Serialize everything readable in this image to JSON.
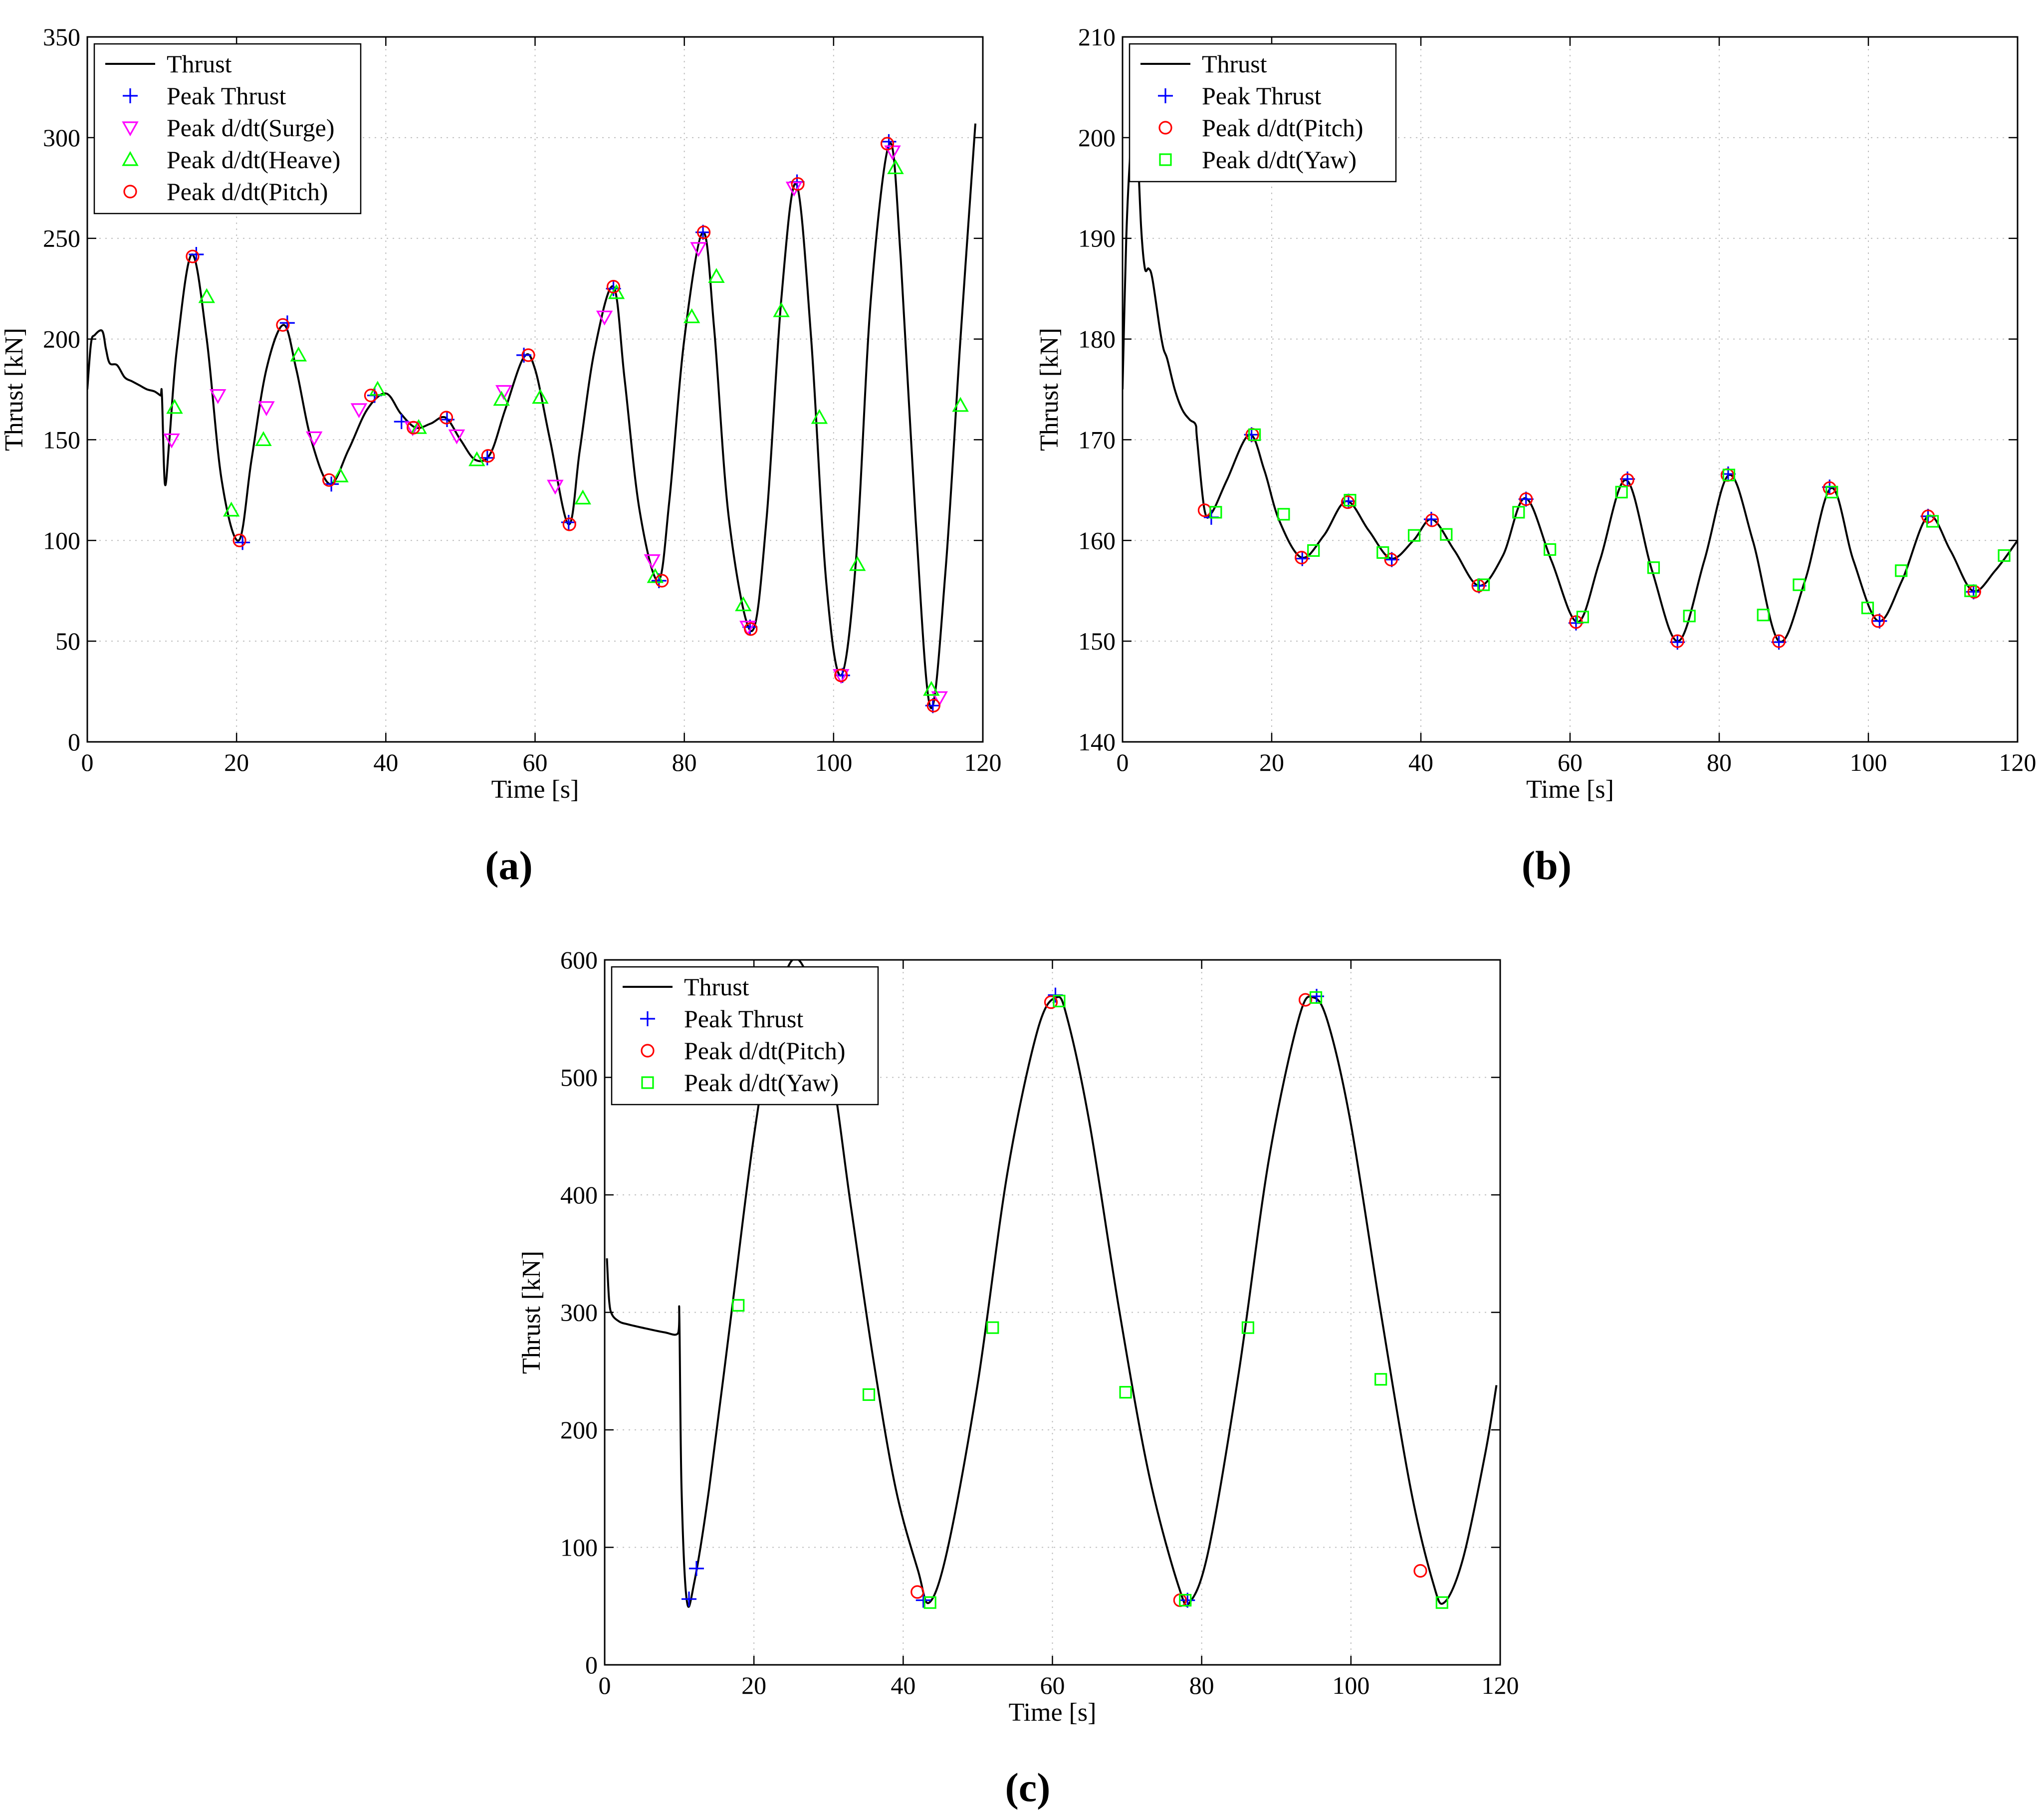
{
  "colors": {
    "thrust": "#000000",
    "peak_thrust": "#0000ff",
    "peak_surge": "#ff00ff",
    "peak_heave": "#00ff00",
    "peak_pitch": "#ff0000",
    "peak_yaw": "#00ff00",
    "grid": "#bfbfbf"
  },
  "chart_data": [
    {
      "panel_label": "(a)",
      "type": "line",
      "xlabel": "Time [s]",
      "ylabel": "Thrust [kN]",
      "xlim": [
        0,
        120
      ],
      "ylim": [
        0,
        350
      ],
      "xticks": [
        0,
        20,
        40,
        60,
        80,
        100,
        120
      ],
      "yticks": [
        0,
        50,
        100,
        150,
        200,
        250,
        300,
        350
      ],
      "grid": true,
      "legend_position": "top-left",
      "series": [
        {
          "name": "Thrust",
          "kind": "line",
          "color": "#000000",
          "x": [
            0,
            0.5,
            1,
            2,
            2.5,
            3,
            4,
            5,
            6,
            7,
            8,
            9,
            9.8,
            10,
            10.4,
            11,
            12,
            14,
            16,
            18,
            20.3,
            22,
            24,
            26.3,
            28,
            30,
            32.5,
            35,
            37.5,
            40,
            42,
            44,
            46,
            48,
            50,
            52,
            54,
            56,
            58.5,
            60,
            62,
            64.5,
            66,
            68,
            70.5,
            72,
            74,
            76.5,
            78,
            80,
            82.5,
            84,
            86,
            89,
            91,
            93,
            95,
            97,
            99,
            101,
            103,
            105,
            107.5,
            109,
            111,
            113,
            115,
            117,
            119
          ],
          "y": [
            175,
            198,
            202,
            204,
            195,
            188,
            187,
            181,
            179,
            177,
            175,
            174,
            172,
            172,
            128,
            150,
            195,
            242,
            200,
            130,
            100,
            140,
            185,
            207,
            185,
            150,
            128,
            145,
            165,
            173,
            163,
            156,
            158,
            161,
            150,
            140,
            143,
            165,
            191,
            185,
            150,
            108,
            145,
            195,
            226,
            180,
            115,
            80,
            120,
            200,
            253,
            205,
            110,
            55,
            110,
            220,
            277,
            200,
            80,
            33,
            90,
            220,
            297,
            240,
            110,
            17,
            85,
            200,
            307
          ]
        },
        {
          "name": "Peak Thrust",
          "kind": "marker",
          "marker": "plus",
          "color": "#0000ff",
          "x": [
            14.6,
            20.8,
            26.8,
            32.7,
            38.5,
            42.1,
            48.2,
            53.6,
            58.5,
            64.5,
            70.5,
            76.6,
            82.5,
            88.8,
            95.1,
            101.2,
            107.4,
            113.3
          ],
          "y": [
            242,
            99,
            208,
            128,
            172,
            159,
            160,
            141,
            192,
            109,
            225,
            80,
            253,
            57,
            278,
            33,
            298,
            18
          ]
        },
        {
          "name": "Peak d/dt(Surge)",
          "kind": "marker",
          "marker": "triangle-down",
          "color": "#ff00ff",
          "x": [
            11.3,
            17.5,
            24,
            30.4,
            36.4,
            43.6,
            49.5,
            55.8,
            62.7,
            69.3,
            75.7,
            81.9,
            88.5,
            94.7,
            101,
            107.9,
            114.2
          ],
          "y": [
            150,
            172,
            166,
            151,
            165,
            156,
            152,
            174,
            127,
            211,
            90,
            245,
            57,
            275,
            33,
            293,
            22
          ]
        },
        {
          "name": "Peak d/dt(Heave)",
          "kind": "marker",
          "marker": "triangle-up",
          "color": "#00ff00",
          "x": [
            11.7,
            16,
            19.3,
            23.6,
            28.3,
            33.9,
            38.9,
            44.4,
            52.2,
            55.5,
            60.7,
            66.4,
            70.9,
            76.1,
            81,
            84.3,
            87.9,
            93,
            98.1,
            103.2,
            108.3,
            113.1,
            117
          ],
          "y": [
            166,
            221,
            115,
            150,
            192,
            132,
            175,
            156,
            140,
            170,
            171,
            121,
            223,
            82,
            211,
            231,
            68,
            214,
            161,
            88,
            285,
            26,
            167
          ]
        },
        {
          "name": "Peak d/dt(Pitch)",
          "kind": "marker",
          "marker": "circle",
          "color": "#ff0000",
          "x": [
            14.1,
            20.4,
            26.2,
            32.4,
            38,
            43.7,
            48.1,
            53.7,
            59.1,
            64.6,
            70.5,
            77,
            82.6,
            88.9,
            95.2,
            101,
            107.2,
            113.4
          ],
          "y": [
            241,
            100,
            207,
            130,
            172,
            156,
            161,
            142,
            192,
            108,
            226,
            80,
            253,
            56,
            277,
            33,
            297,
            18
          ]
        }
      ]
    },
    {
      "panel_label": "(b)",
      "type": "line",
      "xlabel": "Time [s]",
      "ylabel": "Thrust [kN]",
      "xlim": [
        0,
        120
      ],
      "ylim": [
        140,
        210
      ],
      "xticks": [
        0,
        20,
        40,
        60,
        80,
        100,
        120
      ],
      "yticks": [
        140,
        150,
        160,
        170,
        180,
        190,
        200,
        210
      ],
      "grid": true,
      "legend_position": "top-left",
      "series": [
        {
          "name": "Thrust",
          "kind": "line",
          "color": "#000000",
          "x": [
            0,
            0.5,
            1,
            1.5,
            2,
            2.5,
            3,
            3.5,
            4,
            5,
            5.5,
            6,
            7,
            8,
            9,
            9.8,
            10,
            11,
            12,
            14,
            17,
            19,
            21,
            24,
            27,
            30,
            33,
            36,
            39,
            41.5,
            44.5,
            47.8,
            51,
            54,
            57.5,
            61,
            64,
            67.5,
            71,
            74.5,
            78,
            81.3,
            84.5,
            88,
            91.5,
            95,
            98,
            101.3,
            104.5,
            108,
            111,
            114,
            117,
            120
          ],
          "y": [
            175,
            190,
            198,
            202,
            199,
            191,
            187,
            187,
            186,
            181,
            179,
            178,
            175,
            173,
            172,
            171.5,
            170,
            163,
            162.8,
            166,
            170.5,
            167,
            162,
            158.3,
            160.5,
            163.9,
            161,
            158.2,
            160,
            162.1,
            159,
            155.5,
            158.5,
            164.2,
            158,
            151.9,
            158,
            166,
            157,
            150,
            158,
            166.5,
            160,
            150,
            156,
            165.2,
            158,
            152,
            156,
            162.4,
            159,
            155,
            157,
            160
          ]
        },
        {
          "name": "Peak Thrust",
          "kind": "marker",
          "marker": "plus",
          "color": "#0000ff",
          "x": [
            11.9,
            17.3,
            24.1,
            30.3,
            36.1,
            41.4,
            47.8,
            54.1,
            60.8,
            67.7,
            74.4,
            81.2,
            88,
            94.8,
            101.5,
            108,
            114.1
          ],
          "y": [
            162.3,
            170.5,
            158.2,
            163.9,
            158.1,
            162.1,
            155.5,
            164.1,
            151.8,
            166.1,
            149.9,
            166.6,
            149.9,
            165.3,
            152,
            162.4,
            154.9
          ]
        },
        {
          "name": "Peak d/dt(Pitch)",
          "kind": "marker",
          "marker": "circle",
          "color": "#ff0000",
          "x": [
            11,
            17.4,
            24,
            30.2,
            36,
            41.5,
            47.7,
            54.1,
            60.8,
            67.7,
            74.4,
            81.1,
            88,
            94.8,
            101.3,
            108,
            114.2
          ],
          "y": [
            163,
            170.5,
            158.3,
            163.8,
            158.1,
            162,
            155.5,
            164.1,
            151.9,
            166,
            150,
            166.5,
            150,
            165.2,
            152,
            162.4,
            154.9
          ]
        },
        {
          "name": "Peak d/dt(Yaw)",
          "kind": "marker",
          "marker": "square",
          "color": "#00ff00",
          "x": [
            12.5,
            17.7,
            21.6,
            25.6,
            30.5,
            34.9,
            39.1,
            43.4,
            48.4,
            53.1,
            57.3,
            61.7,
            66.9,
            71.2,
            76,
            81.3,
            85.9,
            90.7,
            95.1,
            99.9,
            104.4,
            108.6,
            113.7,
            118.2
          ],
          "y": [
            162.8,
            170.5,
            162.6,
            159,
            164,
            158.8,
            160.5,
            160.6,
            155.6,
            162.8,
            159.1,
            152.4,
            164.8,
            157.3,
            152.5,
            166.5,
            152.6,
            155.6,
            164.8,
            153.3,
            157,
            161.9,
            155,
            158.5
          ]
        }
      ]
    },
    {
      "panel_label": "(c)",
      "type": "line",
      "xlabel": "Time [s]",
      "ylabel": "Thrust [kN]",
      "xlim": [
        0,
        120
      ],
      "ylim": [
        0,
        600
      ],
      "xticks": [
        0,
        20,
        40,
        60,
        80,
        100,
        120
      ],
      "yticks": [
        0,
        100,
        200,
        300,
        400,
        500,
        600
      ],
      "grid": true,
      "legend_position": "top-left",
      "series": [
        {
          "name": "Thrust",
          "kind": "line",
          "color": "#000000",
          "x": [
            0.3,
            0.6,
            1,
            2,
            3,
            5,
            8,
            9.8,
            10,
            10.3,
            11,
            12,
            14,
            17,
            20,
            23,
            26,
            30,
            33,
            36,
            39,
            42,
            43.5,
            46,
            50,
            54,
            58,
            60.5,
            62,
            65,
            69,
            73,
            77,
            78.5,
            81,
            85,
            89,
            93,
            95,
            97,
            100,
            104,
            108,
            111,
            112.5,
            115,
            118,
            119.5
          ],
          "y": [
            346,
            310,
            298,
            292,
            290,
            287,
            283,
            282,
            298,
            150,
            55,
            70,
            150,
            300,
            450,
            560,
            600,
            520,
            390,
            260,
            150,
            80,
            53,
            100,
            240,
            420,
            540,
            568,
            550,
            460,
            300,
            160,
            65,
            54,
            100,
            250,
            430,
            550,
            568,
            545,
            460,
            300,
            150,
            70,
            53,
            90,
            180,
            238
          ]
        },
        {
          "name": "Peak Thrust",
          "kind": "marker",
          "marker": "plus",
          "color": "#0000ff",
          "x": [
            11.3,
            12.3,
            42.7,
            60.4,
            78.1,
            95.4
          ],
          "y": [
            56,
            82,
            55,
            570,
            55,
            569
          ]
        },
        {
          "name": "Peak d/dt(Pitch)",
          "kind": "marker",
          "marker": "circle",
          "color": "#ff0000",
          "x": [
            41.9,
            59.8,
            77.1,
            93.9,
            109.3
          ],
          "y": [
            62,
            564,
            55,
            566,
            80
          ]
        },
        {
          "name": "Peak d/dt(Yaw)",
          "kind": "marker",
          "marker": "square",
          "color": "#00ff00",
          "x": [
            17.9,
            35.4,
            43.6,
            52,
            60.9,
            69.8,
            77.8,
            86.2,
            95.3,
            104,
            112.2
          ],
          "y": [
            306,
            230,
            53,
            287,
            565,
            232,
            55,
            287,
            568,
            243,
            53
          ]
        }
      ]
    }
  ]
}
